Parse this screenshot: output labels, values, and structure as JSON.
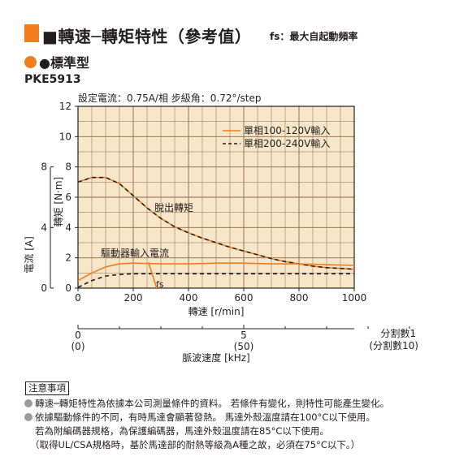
{
  "header": {
    "title": "■轉速─轉矩特性（參考值）",
    "fs_note": "fs：最大自起動頻率"
  },
  "subheader": {
    "title": "●標準型",
    "model": "PKE5913",
    "settings": "設定電流：0.75A/相  步級角：0.72°/step"
  },
  "colors": {
    "accent": "#f07d1e",
    "grid_fill": "#f7e6c7",
    "black": "#231f20"
  },
  "chart_data": {
    "type": "line",
    "xlabel": "轉速 [r/min]",
    "ylabel_torque": "轉矩 [N·m]",
    "ylabel_current": "電流 [A]",
    "xlim": [
      0,
      1000
    ],
    "ylim": [
      0,
      12
    ],
    "x_ticks": [
      "0",
      "200",
      "400",
      "600",
      "800",
      "1000"
    ],
    "y_ticks": [
      "0",
      "2",
      "4",
      "6",
      "8",
      "10",
      "12"
    ],
    "current_ticks": [
      "0",
      "4",
      "8"
    ],
    "grid": true,
    "legend_position": "top-right",
    "series": [
      {
        "name": "單相100-120V輸入",
        "role": "torque",
        "color": "#f07d1e",
        "style": "solid",
        "x": [
          0,
          50,
          100,
          150,
          200,
          250,
          300,
          350,
          400,
          450,
          500,
          550,
          600,
          650,
          700,
          750,
          800,
          850,
          900,
          950,
          1000
        ],
        "y": [
          7.0,
          7.3,
          7.3,
          6.9,
          6.1,
          5.3,
          4.6,
          4.05,
          3.65,
          3.3,
          3.0,
          2.7,
          2.45,
          2.2,
          1.95,
          1.75,
          1.6,
          1.45,
          1.35,
          1.3,
          1.25
        ]
      },
      {
        "name": "單相200-240V輸入",
        "role": "torque",
        "color": "#231f20",
        "style": "dashed",
        "x": [
          0,
          50,
          100,
          150,
          200,
          250,
          300,
          350,
          400,
          450,
          500,
          550,
          600,
          650,
          700,
          750,
          800,
          850,
          900,
          950,
          1000
        ],
        "y": [
          7.0,
          7.3,
          7.3,
          6.9,
          6.1,
          5.3,
          4.6,
          4.05,
          3.65,
          3.3,
          3.0,
          2.7,
          2.45,
          2.2,
          1.95,
          1.75,
          1.6,
          1.45,
          1.35,
          1.3,
          1.25
        ]
      },
      {
        "name": "單相100-120V輸入",
        "role": "current",
        "color": "#f07d1e",
        "style": "solid",
        "x": [
          0,
          50,
          100,
          150,
          200,
          300,
          400,
          500,
          600,
          700,
          800,
          900,
          1000
        ],
        "y": [
          0.5,
          1.0,
          1.4,
          1.6,
          1.65,
          1.6,
          1.6,
          1.65,
          1.65,
          1.6,
          1.6,
          1.55,
          1.5
        ]
      },
      {
        "name": "單相200-240V輸入",
        "role": "current",
        "color": "#231f20",
        "style": "dashed",
        "x": [
          0,
          50,
          100,
          150,
          200,
          300,
          400,
          500,
          600,
          700,
          800,
          900,
          1000
        ],
        "y": [
          0.05,
          0.5,
          0.8,
          0.9,
          0.95,
          0.95,
          0.95,
          0.95,
          0.95,
          0.95,
          0.95,
          0.95,
          0.95
        ]
      },
      {
        "name": "fs",
        "role": "fs",
        "color": "#f07d1e",
        "style": "solid",
        "x": [
          255,
          285
        ],
        "y": [
          1.7,
          0
        ]
      }
    ],
    "annotations": {
      "pullout": "脫出轉矩",
      "driver_current": "驅動器輸入電流",
      "fs": "fs"
    },
    "pulse_axis": {
      "label": "脈波速度 [kHz]",
      "tick_main": [
        "0",
        "5"
      ],
      "tick_sub": [
        "(0)",
        "(50)"
      ],
      "div1": "分割數1",
      "div10": "(分割數10)"
    }
  },
  "notes": {
    "heading": "注意事項",
    "line1": "轉速─轉矩特性為依據本公司測量條件的資料。 若條件有變化，則特性可能產生變化。",
    "line2": "依據驅動條件的不同，有時馬達會顯著發熱。 馬達外殼溫度請在100°C以下使用。",
    "line3": "若為附編碼器規格，為保護編碼器，馬達外殼溫度請在85°C以下使用。",
    "line4": "（取得UL/CSA規格時，基於馬達部的耐熱等級為A種之故，必須在75°C以下。）"
  }
}
